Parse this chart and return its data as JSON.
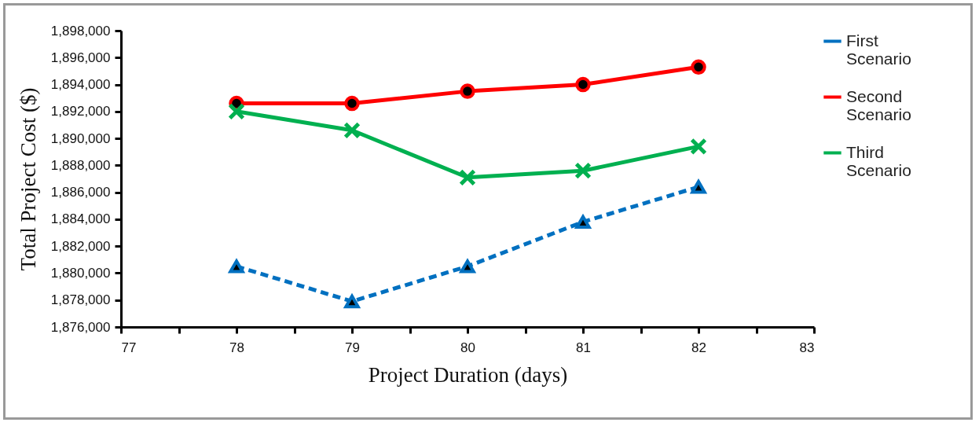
{
  "chart_data": {
    "type": "line",
    "xlabel": "Project Duration (days)",
    "ylabel": "Total Project Cost ($)",
    "xlim": [
      77,
      83
    ],
    "xticks": [
      77,
      {
        "value": 77.5,
        "label": null
      },
      78,
      {
        "value": 78.5,
        "label": null
      },
      79,
      {
        "value": 79.5,
        "label": null
      },
      80,
      {
        "value": 80.5,
        "label": null
      },
      81,
      {
        "value": 81.5,
        "label": null
      },
      82,
      {
        "value": 82.5,
        "label": null
      },
      83
    ],
    "ylim": [
      1876000,
      1898000
    ],
    "yticks": [
      {
        "value": 1876000,
        "label": "1,876,000"
      },
      {
        "value": 1878000,
        "label": "1,878,000"
      },
      {
        "value": 1880000,
        "label": "1,880,000"
      },
      {
        "value": 1882000,
        "label": "1,882,000"
      },
      {
        "value": 1884000,
        "label": "1,884,000"
      },
      {
        "value": 1886000,
        "label": "1,886,000"
      },
      {
        "value": 1888000,
        "label": "1,888,000"
      },
      {
        "value": 1890000,
        "label": "1,890,000"
      },
      {
        "value": 1892000,
        "label": "1,892,000"
      },
      {
        "value": 1894000,
        "label": "1,894,000"
      },
      {
        "value": 1896000,
        "label": "1,896,000"
      },
      {
        "value": 1898000,
        "label": "1,898,000"
      }
    ],
    "grid": false,
    "legend": "right",
    "x": [
      78,
      79,
      80,
      81,
      82
    ],
    "series": [
      {
        "name": "First Scenario",
        "color": "#0070c0",
        "marker": "triangle",
        "line_style": "dashed",
        "values": [
          1880500,
          1877900,
          1880500,
          1883800,
          1886400
        ]
      },
      {
        "name": "Second Scenario",
        "color": "#ff0000",
        "marker": "circle",
        "line_style": "solid",
        "values": [
          1892600,
          1892600,
          1893500,
          1894000,
          1895300
        ]
      },
      {
        "name": "Third Scenario",
        "color": "#00b050",
        "marker": "cross",
        "line_style": "solid",
        "values": [
          1892000,
          1890600,
          1887100,
          1887600,
          1889400
        ]
      }
    ]
  }
}
